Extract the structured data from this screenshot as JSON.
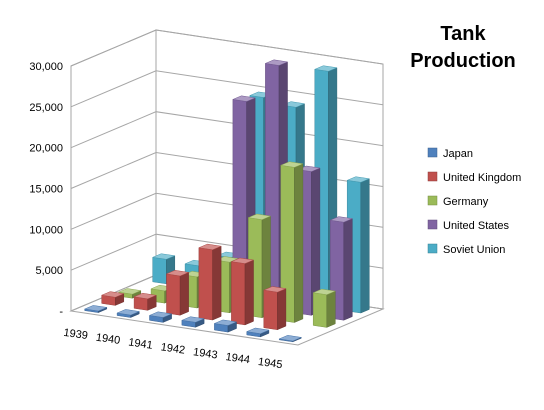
{
  "chart_data": {
    "type": "bar",
    "title": "Tank Production",
    "xlabel": "",
    "ylabel": "",
    "ylim": [
      0,
      30000
    ],
    "yticks": [
      {
        "value": 0,
        "label": "-"
      },
      {
        "value": 5000,
        "label": "5,000"
      },
      {
        "value": 10000,
        "label": "10,000"
      },
      {
        "value": 15000,
        "label": "15,000"
      },
      {
        "value": 20000,
        "label": "20,000"
      },
      {
        "value": 25000,
        "label": "25,000"
      },
      {
        "value": 30000,
        "label": "30,000"
      }
    ],
    "grid": true,
    "legend_position": "right",
    "categories": [
      "1939",
      "1940",
      "1941",
      "1942",
      "1943",
      "1944",
      "1945"
    ],
    "series": [
      {
        "name": "Japan",
        "color": "#4F81BD",
        "values": [
          200,
          300,
          600,
          600,
          800,
          400,
          100
        ]
      },
      {
        "name": "United Kingdom",
        "color": "#C0504D",
        "values": [
          1000,
          1400,
          4800,
          8600,
          7500,
          4600,
          0
        ]
      },
      {
        "name": "Germany",
        "color": "#9BBB59",
        "values": [
          500,
          1500,
          3800,
          6200,
          12000,
          19000,
          4000
        ]
      },
      {
        "name": "United States",
        "color": "#8064A2",
        "values": [
          0,
          300,
          4000,
          25000,
          30000,
          17600,
          12000
        ]
      },
      {
        "name": "Soviet Union",
        "color": "#4BACC6",
        "values": [
          3000,
          2800,
          4400,
          24600,
          24000,
          29000,
          16000
        ]
      }
    ]
  }
}
